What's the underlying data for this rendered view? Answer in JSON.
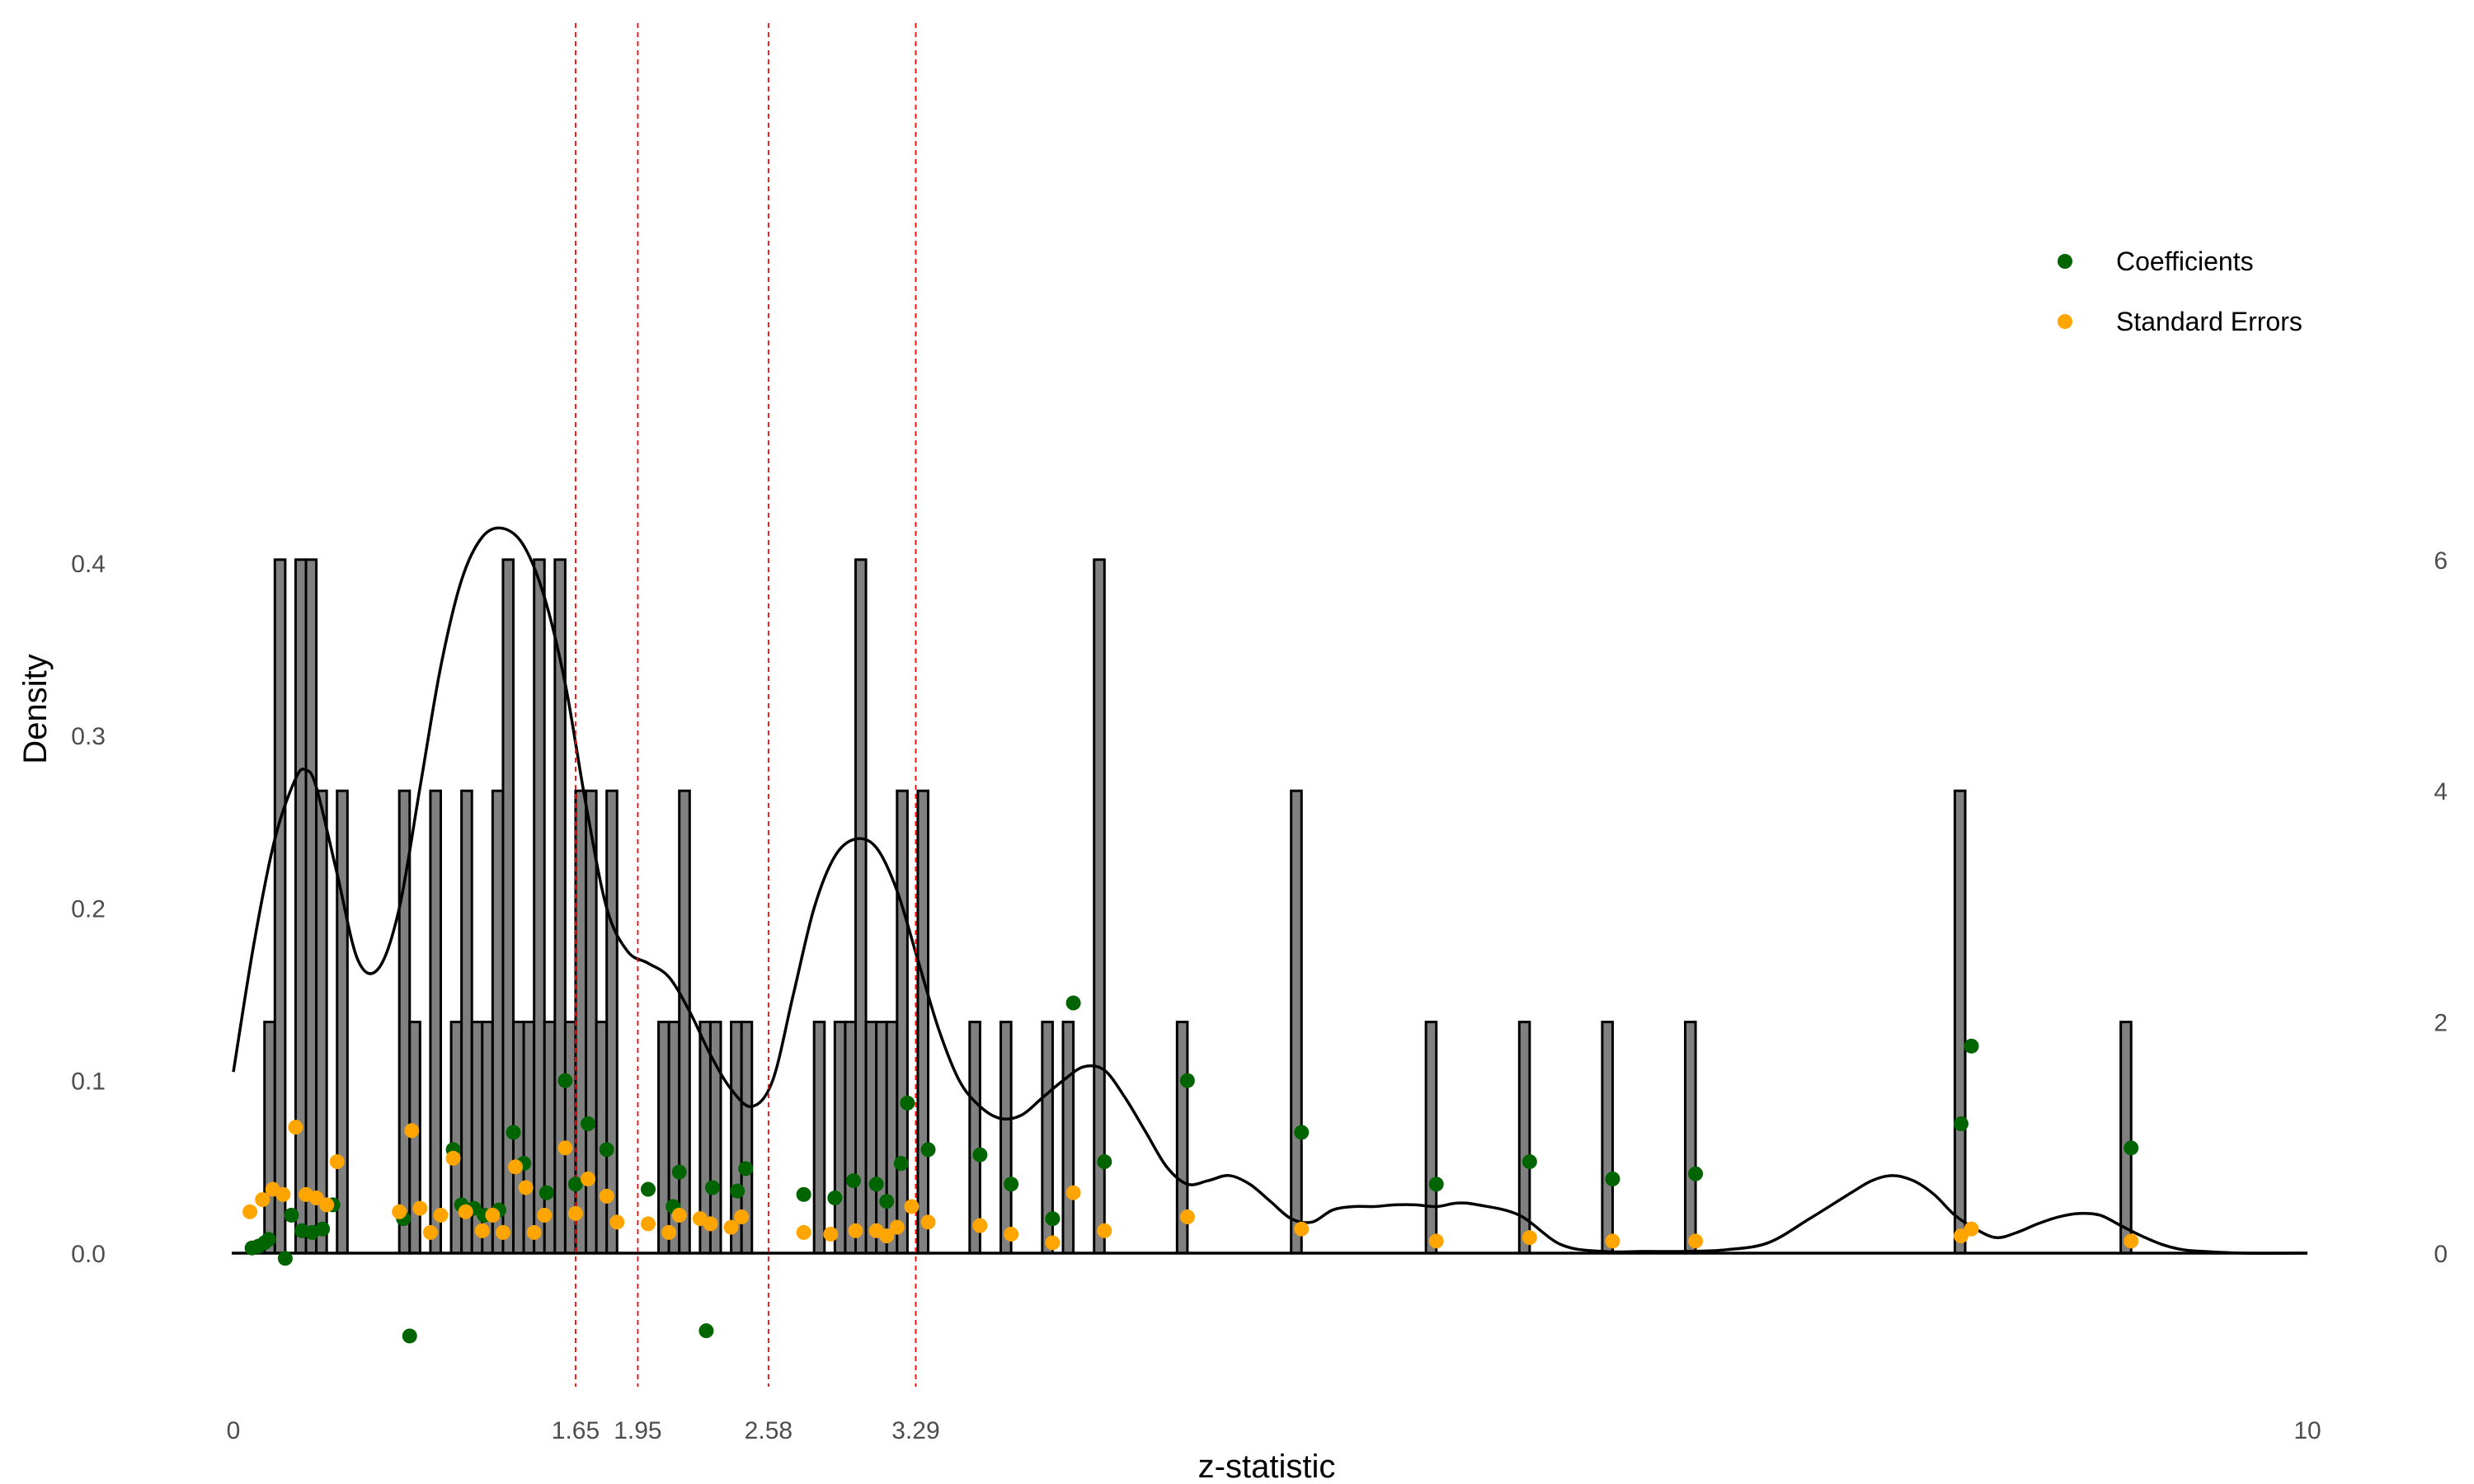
{
  "chart_data": {
    "type": "bar",
    "title": "",
    "xlabel": "z-statistic",
    "ylabel": "Density",
    "xlim": [
      0,
      10
    ],
    "ylim_left": [
      0,
      0.45
    ],
    "ylim_right": [
      0,
      6.8
    ],
    "x_ticks": [
      "0",
      "10"
    ],
    "y_ticks_left": [
      "0.0",
      "0.1",
      "0.2",
      "0.3",
      "0.4"
    ],
    "y_ticks_right": [
      "0",
      "2",
      "4",
      "6"
    ],
    "threshold_lines": [
      1.65,
      1.95,
      2.58,
      3.29
    ],
    "threshold_labels": [
      "1.65",
      "1.95",
      "2.58",
      "3.29"
    ],
    "histogram": {
      "bin_width": 0.05,
      "fill": "#808080",
      "edge": "#000000",
      "count_left_edges": [
        [
          0.15,
          2
        ],
        [
          0.2,
          6
        ],
        [
          0.3,
          6
        ],
        [
          0.35,
          6
        ],
        [
          0.4,
          4
        ],
        [
          0.5,
          4
        ],
        [
          0.8,
          4
        ],
        [
          0.85,
          2
        ],
        [
          0.95,
          4
        ],
        [
          1.05,
          2
        ],
        [
          1.1,
          4
        ],
        [
          1.15,
          2
        ],
        [
          1.2,
          2
        ],
        [
          1.25,
          4
        ],
        [
          1.3,
          6
        ],
        [
          1.35,
          2
        ],
        [
          1.4,
          2
        ],
        [
          1.45,
          6
        ],
        [
          1.5,
          2
        ],
        [
          1.55,
          6
        ],
        [
          1.6,
          2
        ],
        [
          1.65,
          4
        ],
        [
          1.7,
          4
        ],
        [
          1.75,
          2
        ],
        [
          1.8,
          4
        ],
        [
          2.05,
          2
        ],
        [
          2.1,
          2
        ],
        [
          2.15,
          4
        ],
        [
          2.25,
          2
        ],
        [
          2.3,
          2
        ],
        [
          2.4,
          2
        ],
        [
          2.45,
          2
        ],
        [
          2.8,
          2
        ],
        [
          2.9,
          2
        ],
        [
          2.95,
          2
        ],
        [
          3.0,
          6
        ],
        [
          3.05,
          2
        ],
        [
          3.1,
          2
        ],
        [
          3.15,
          2
        ],
        [
          3.2,
          4
        ],
        [
          3.3,
          4
        ],
        [
          3.55,
          2
        ],
        [
          3.7,
          2
        ],
        [
          3.9,
          2
        ],
        [
          4.0,
          2
        ],
        [
          4.15,
          6
        ],
        [
          4.55,
          2
        ],
        [
          5.1,
          4
        ],
        [
          5.75,
          2
        ],
        [
          6.2,
          2
        ],
        [
          6.6,
          2
        ],
        [
          7.0,
          2
        ],
        [
          8.3,
          4
        ],
        [
          9.1,
          2
        ]
      ]
    },
    "density_curve": {
      "x": [
        0,
        0.1,
        0.2,
        0.3,
        0.35,
        0.4,
        0.5,
        0.6,
        0.7,
        0.8,
        0.9,
        1.0,
        1.1,
        1.2,
        1.3,
        1.4,
        1.5,
        1.6,
        1.7,
        1.8,
        1.9,
        2.0,
        2.1,
        2.2,
        2.3,
        2.4,
        2.5,
        2.6,
        2.7,
        2.8,
        2.9,
        3.0,
        3.1,
        3.2,
        3.3,
        3.4,
        3.5,
        3.6,
        3.7,
        3.8,
        3.9,
        4.0,
        4.1,
        4.2,
        4.3,
        4.4,
        4.5,
        4.6,
        4.7,
        4.8,
        4.9,
        5.0,
        5.1,
        5.2,
        5.3,
        5.4,
        5.5,
        5.6,
        5.7,
        5.8,
        5.9,
        6.0,
        6.2,
        6.4,
        6.6,
        6.8,
        7.0,
        7.2,
        7.4,
        7.6,
        7.8,
        7.9,
        8.0,
        8.1,
        8.2,
        8.3,
        8.4,
        8.5,
        8.6,
        8.7,
        8.8,
        8.9,
        9.0,
        9.1,
        9.2,
        9.3,
        9.4,
        9.5,
        9.7,
        10.0
      ],
      "y": [
        0.105,
        0.18,
        0.24,
        0.275,
        0.28,
        0.27,
        0.22,
        0.17,
        0.165,
        0.2,
        0.27,
        0.34,
        0.39,
        0.415,
        0.42,
        0.41,
        0.38,
        0.33,
        0.26,
        0.2,
        0.175,
        0.168,
        0.16,
        0.14,
        0.115,
        0.095,
        0.085,
        0.1,
        0.15,
        0.2,
        0.23,
        0.24,
        0.235,
        0.21,
        0.17,
        0.13,
        0.1,
        0.085,
        0.078,
        0.08,
        0.09,
        0.1,
        0.108,
        0.106,
        0.09,
        0.07,
        0.05,
        0.04,
        0.042,
        0.045,
        0.04,
        0.03,
        0.02,
        0.018,
        0.025,
        0.027,
        0.027,
        0.028,
        0.028,
        0.027,
        0.029,
        0.028,
        0.022,
        0.005,
        0.001,
        0.001,
        0.001,
        0.002,
        0.006,
        0.02,
        0.035,
        0.042,
        0.045,
        0.042,
        0.034,
        0.022,
        0.014,
        0.009,
        0.012,
        0.017,
        0.021,
        0.023,
        0.022,
        0.016,
        0.01,
        0.005,
        0.002,
        0.001,
        0.0,
        0.0
      ]
    },
    "legend": {
      "placement": "top-right",
      "entries": [
        {
          "label": "Coefficients",
          "color": "#006400"
        },
        {
          "label": "Standard Errors",
          "color": "#FFA500"
        }
      ]
    },
    "series": [
      {
        "name": "Coefficients",
        "color": "#006400",
        "points": [
          [
            0.09,
            0.003
          ],
          [
            0.12,
            0.004
          ],
          [
            0.15,
            0.006
          ],
          [
            0.17,
            0.008
          ],
          [
            0.25,
            -0.003
          ],
          [
            0.28,
            0.022
          ],
          [
            0.33,
            0.013
          ],
          [
            0.38,
            0.012
          ],
          [
            0.43,
            0.014
          ],
          [
            0.48,
            0.028
          ],
          [
            0.82,
            0.02
          ],
          [
            0.85,
            -0.048
          ],
          [
            1.06,
            0.06
          ],
          [
            1.1,
            0.028
          ],
          [
            1.16,
            0.026
          ],
          [
            1.21,
            0.022
          ],
          [
            1.28,
            0.025
          ],
          [
            1.35,
            0.07
          ],
          [
            1.4,
            0.052
          ],
          [
            1.51,
            0.035
          ],
          [
            1.6,
            0.1
          ],
          [
            1.65,
            0.04
          ],
          [
            1.71,
            0.075
          ],
          [
            1.8,
            0.06
          ],
          [
            2.0,
            0.037
          ],
          [
            2.12,
            0.027
          ],
          [
            2.15,
            0.047
          ],
          [
            2.28,
            -0.045
          ],
          [
            2.31,
            0.038
          ],
          [
            2.43,
            0.036
          ],
          [
            2.47,
            0.049
          ],
          [
            2.75,
            0.034
          ],
          [
            2.9,
            0.032
          ],
          [
            2.99,
            0.042
          ],
          [
            3.1,
            0.04
          ],
          [
            3.15,
            0.03
          ],
          [
            3.22,
            0.052
          ],
          [
            3.25,
            0.087
          ],
          [
            3.35,
            0.06
          ],
          [
            3.6,
            0.057
          ],
          [
            3.75,
            0.04
          ],
          [
            3.95,
            0.02
          ],
          [
            4.05,
            0.145
          ],
          [
            4.2,
            0.053
          ],
          [
            4.6,
            0.1
          ],
          [
            5.15,
            0.07
          ],
          [
            5.8,
            0.04
          ],
          [
            6.25,
            0.053
          ],
          [
            6.65,
            0.043
          ],
          [
            7.05,
            0.046
          ],
          [
            8.33,
            0.075
          ],
          [
            8.38,
            0.12
          ],
          [
            9.15,
            0.061
          ]
        ]
      },
      {
        "name": "Standard Errors",
        "color": "#FFA500",
        "points": [
          [
            0.08,
            0.024
          ],
          [
            0.14,
            0.031
          ],
          [
            0.19,
            0.037
          ],
          [
            0.24,
            0.034
          ],
          [
            0.3,
            0.073
          ],
          [
            0.35,
            0.034
          ],
          [
            0.4,
            0.032
          ],
          [
            0.45,
            0.028
          ],
          [
            0.5,
            0.053
          ],
          [
            0.8,
            0.024
          ],
          [
            0.86,
            0.071
          ],
          [
            0.9,
            0.026
          ],
          [
            0.95,
            0.012
          ],
          [
            1.0,
            0.022
          ],
          [
            1.06,
            0.055
          ],
          [
            1.12,
            0.024
          ],
          [
            1.2,
            0.013
          ],
          [
            1.25,
            0.022
          ],
          [
            1.3,
            0.012
          ],
          [
            1.36,
            0.05
          ],
          [
            1.41,
            0.038
          ],
          [
            1.45,
            0.012
          ],
          [
            1.5,
            0.022
          ],
          [
            1.6,
            0.061
          ],
          [
            1.65,
            0.023
          ],
          [
            1.71,
            0.043
          ],
          [
            1.8,
            0.033
          ],
          [
            1.85,
            0.018
          ],
          [
            2.0,
            0.017
          ],
          [
            2.1,
            0.012
          ],
          [
            2.15,
            0.022
          ],
          [
            2.25,
            0.02
          ],
          [
            2.3,
            0.017
          ],
          [
            2.4,
            0.015
          ],
          [
            2.45,
            0.021
          ],
          [
            2.75,
            0.012
          ],
          [
            2.88,
            0.011
          ],
          [
            3.0,
            0.013
          ],
          [
            3.1,
            0.013
          ],
          [
            3.15,
            0.01
          ],
          [
            3.2,
            0.015
          ],
          [
            3.27,
            0.027
          ],
          [
            3.35,
            0.018
          ],
          [
            3.6,
            0.016
          ],
          [
            3.75,
            0.011
          ],
          [
            3.95,
            0.006
          ],
          [
            4.05,
            0.035
          ],
          [
            4.2,
            0.013
          ],
          [
            4.6,
            0.021
          ],
          [
            5.15,
            0.014
          ],
          [
            5.8,
            0.007
          ],
          [
            6.25,
            0.009
          ],
          [
            6.65,
            0.007
          ],
          [
            7.05,
            0.007
          ],
          [
            8.33,
            0.01
          ],
          [
            8.38,
            0.014
          ],
          [
            9.15,
            0.007
          ]
        ]
      }
    ]
  }
}
